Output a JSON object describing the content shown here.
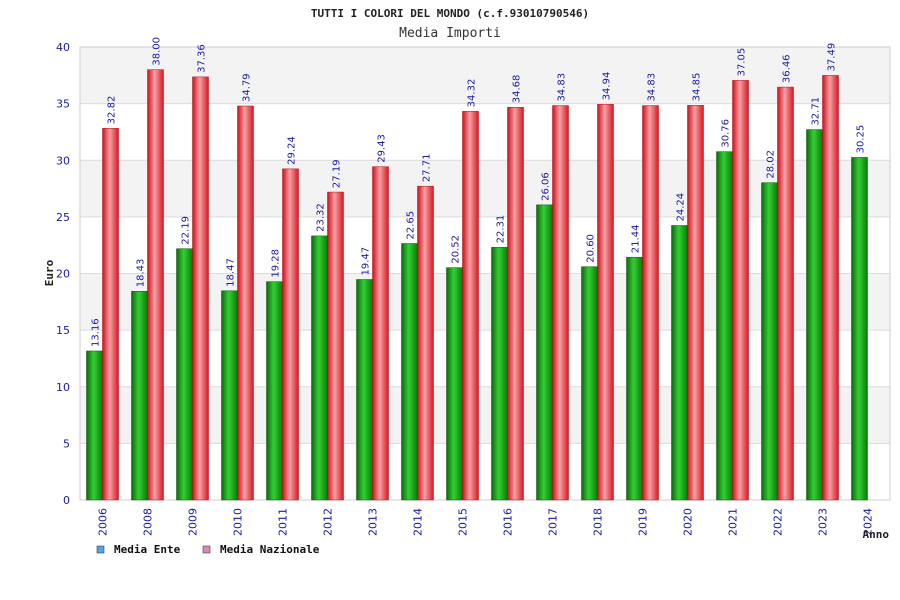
{
  "chart_data": {
    "type": "bar",
    "title": "TUTTI I COLORI DEL MONDO (c.f.93010790546)",
    "subtitle": "Media Importi",
    "ylabel": "Euro",
    "xlabel": "Anno",
    "ylim": [
      0,
      40
    ],
    "yticks": [
      "0",
      "5",
      "10",
      "15",
      "20",
      "25",
      "30",
      "35",
      "40"
    ],
    "grid": true,
    "legend_position": "bottom-left",
    "categories": [
      "2006",
      "2008",
      "2009",
      "2010",
      "2011",
      "2012",
      "2013",
      "2014",
      "2015",
      "2016",
      "2017",
      "2018",
      "2019",
      "2020",
      "2021",
      "2022",
      "2023",
      "2024"
    ],
    "series": [
      {
        "name": "Media Ente",
        "color": "#18a818",
        "legend_color": "#5aa0e6",
        "values": [
          13.16,
          18.43,
          22.19,
          18.47,
          19.28,
          23.32,
          19.47,
          22.65,
          20.52,
          22.31,
          26.06,
          20.6,
          21.44,
          24.24,
          30.76,
          28.02,
          32.71,
          30.25
        ],
        "labels": [
          "13.16",
          "18.43",
          "22.19",
          "18.47",
          "19.28",
          "23.32",
          "19.47",
          "22.65",
          "20.52",
          "22.31",
          "26.06",
          "20.60",
          "21.44",
          "24.24",
          "30.76",
          "28.02",
          "32.71",
          "30.25"
        ]
      },
      {
        "name": "Media Nazionale",
        "color": "#e8202a",
        "legend_color": "#d888b8",
        "values": [
          32.82,
          38.0,
          37.36,
          34.79,
          29.24,
          27.19,
          29.43,
          27.71,
          34.32,
          34.68,
          34.83,
          34.94,
          34.83,
          34.85,
          37.05,
          36.46,
          37.49,
          null
        ],
        "labels": [
          "32.82",
          "38.00",
          "37.36",
          "34.79",
          "29.24",
          "27.19",
          "29.43",
          "27.71",
          "34.32",
          "34.68",
          "34.83",
          "34.94",
          "34.83",
          "34.85",
          "37.05",
          "36.46",
          "37.49",
          ""
        ]
      }
    ]
  }
}
